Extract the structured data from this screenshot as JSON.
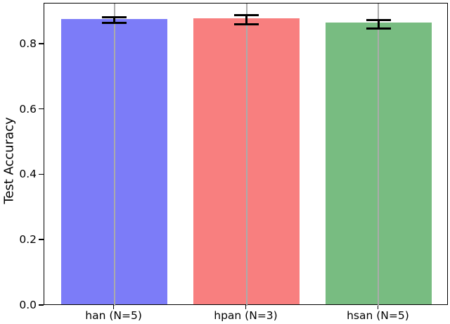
{
  "chart_data": {
    "type": "bar",
    "title": "",
    "xlabel": "",
    "ylabel": "Test Accuracy",
    "categories": [
      "han (N=5)",
      "hpan (N=3)",
      "hsan (N=5)"
    ],
    "values": [
      0.874,
      0.875,
      0.862
    ],
    "errors": [
      0.008,
      0.014,
      0.013
    ],
    "bar_colors": [
      "#7c7cf8",
      "#f87f7f",
      "#78bc81"
    ],
    "error_color": "#000000",
    "grid_color": "#ababab",
    "grid": "vertical-at-bar-centers",
    "legend": "none",
    "ylim": [
      0,
      0.925
    ],
    "yticks": [
      "0.0",
      "0.2",
      "0.4",
      "0.6",
      "0.8"
    ],
    "ytick_values": [
      0.0,
      0.2,
      0.4,
      0.6,
      0.8
    ],
    "bar_width_ratio": 0.8
  }
}
